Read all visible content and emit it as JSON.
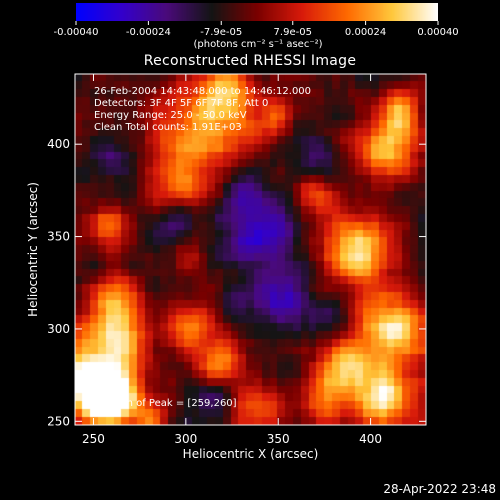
{
  "colorbar": {
    "tick_labels": [
      "-0.00040",
      "-0.00024",
      "-7.9e-05",
      "7.9e-05",
      "0.00024",
      "0.00040"
    ],
    "tick_values": [
      -0.0004,
      -0.00024,
      -7.9e-05,
      7.9e-05,
      0.00024,
      0.0004
    ],
    "units": "(photons cm⁻² s⁻¹ asec⁻²)",
    "range": [
      -0.0004,
      0.0004
    ],
    "colors": [
      "#0000ff",
      "#3300cc",
      "#4a0a7a",
      "#141414",
      "#7a0000",
      "#d81a0a",
      "#ff6a00",
      "#ffc83c",
      "#ffffff"
    ]
  },
  "chart_data": {
    "type": "heatmap",
    "title": "Reconstructed RHESSI Image",
    "xlabel": "Heliocentric X (arcsec)",
    "ylabel": "Heliocentric Y (arcsec)",
    "xlim": [
      240,
      430
    ],
    "ylim": [
      248,
      438
    ],
    "x_ticks": [
      250,
      300,
      350,
      400
    ],
    "y_ticks": [
      250,
      300,
      350,
      400
    ],
    "annotations": [
      "26-Feb-2004 14:43:48.000 to 14:46:12.000",
      "Detectors: 3F 4F 5F 6F 7F 8F, Att 0",
      "Energy Range: 25.0 - 50.0 keV",
      "Clean    Total counts: 1.91E+03"
    ],
    "peak_label": "Position of Peak = [259,260]",
    "peak_position": [
      259,
      260
    ],
    "grid_size": 45,
    "bright_regions": [
      {
        "x": 252,
        "y": 272,
        "sigma": 16,
        "amp": 1.25
      },
      {
        "x": 258,
        "y": 260,
        "sigma": 9,
        "amp": 0.9
      },
      {
        "x": 264,
        "y": 300,
        "sigma": 10,
        "amp": 0.7
      },
      {
        "x": 262,
        "y": 318,
        "sigma": 9,
        "amp": 0.6
      },
      {
        "x": 258,
        "y": 355,
        "sigma": 9,
        "amp": 0.55
      },
      {
        "x": 310,
        "y": 408,
        "sigma": 18,
        "amp": 0.85
      },
      {
        "x": 322,
        "y": 432,
        "sigma": 10,
        "amp": 0.6
      },
      {
        "x": 295,
        "y": 378,
        "sigma": 10,
        "amp": 0.55
      },
      {
        "x": 300,
        "y": 345,
        "sigma": 8,
        "amp": 0.5
      },
      {
        "x": 305,
        "y": 300,
        "sigma": 9,
        "amp": 0.55
      },
      {
        "x": 318,
        "y": 282,
        "sigma": 10,
        "amp": 0.55
      },
      {
        "x": 338,
        "y": 258,
        "sigma": 10,
        "amp": 0.5
      },
      {
        "x": 376,
        "y": 262,
        "sigma": 9,
        "amp": 0.6
      },
      {
        "x": 388,
        "y": 280,
        "sigma": 10,
        "amp": 0.75
      },
      {
        "x": 408,
        "y": 262,
        "sigma": 12,
        "amp": 0.95
      },
      {
        "x": 412,
        "y": 300,
        "sigma": 14,
        "amp": 0.9
      },
      {
        "x": 392,
        "y": 342,
        "sigma": 14,
        "amp": 0.85
      },
      {
        "x": 410,
        "y": 398,
        "sigma": 12,
        "amp": 0.85
      },
      {
        "x": 418,
        "y": 420,
        "sigma": 8,
        "amp": 0.6
      },
      {
        "x": 372,
        "y": 372,
        "sigma": 9,
        "amp": 0.5
      },
      {
        "x": 350,
        "y": 416,
        "sigma": 8,
        "amp": 0.45
      },
      {
        "x": 282,
        "y": 250,
        "sigma": 8,
        "amp": 0.45
      }
    ],
    "dark_regions": [
      {
        "x": 295,
        "y": 352,
        "sigma": 10,
        "amp": 0.7
      },
      {
        "x": 340,
        "y": 352,
        "sigma": 13,
        "amp": 0.85
      },
      {
        "x": 352,
        "y": 318,
        "sigma": 12,
        "amp": 0.8
      },
      {
        "x": 368,
        "y": 392,
        "sigma": 8,
        "amp": 0.5
      },
      {
        "x": 330,
        "y": 378,
        "sigma": 9,
        "amp": 0.55
      },
      {
        "x": 260,
        "y": 392,
        "sigma": 8,
        "amp": 0.45
      },
      {
        "x": 315,
        "y": 262,
        "sigma": 8,
        "amp": 0.45
      },
      {
        "x": 380,
        "y": 305,
        "sigma": 8,
        "amp": 0.45
      }
    ]
  },
  "footer": {
    "timestamp": "28-Apr-2022 23:48"
  }
}
